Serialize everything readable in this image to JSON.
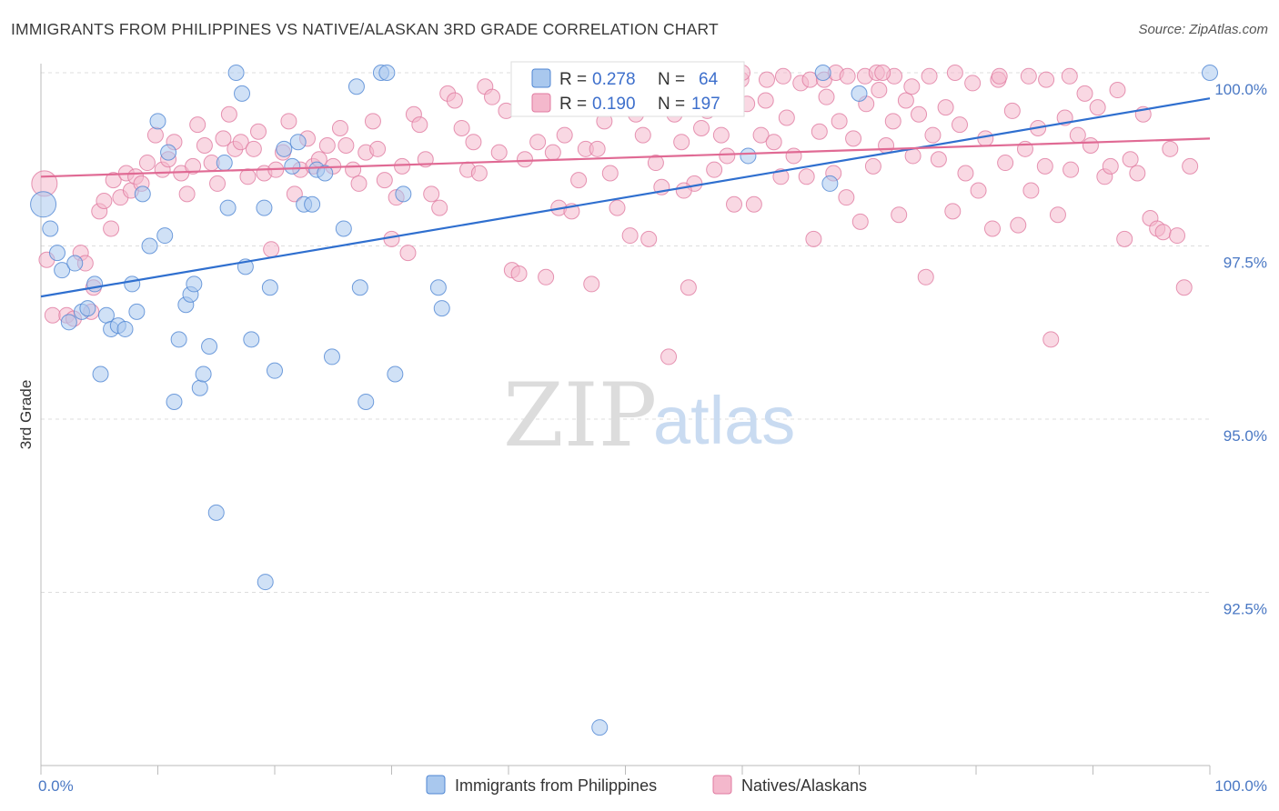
{
  "title": "IMMIGRANTS FROM PHILIPPINES VS NATIVE/ALASKAN 3RD GRADE CORRELATION CHART",
  "source": "Source: ZipAtlas.com",
  "watermark": {
    "zip": "ZIP",
    "atlas": "atlas"
  },
  "colors": {
    "blue_fill": "#a9c8ee",
    "blue_stroke": "#4f86d3",
    "blue_line": "#2f6fcf",
    "pink_fill": "#f4b8cc",
    "pink_stroke": "#e07aa0",
    "pink_line": "#e06a94",
    "grid": "#dddddd",
    "tick_text": "#4a78c4"
  },
  "legend": {
    "rows": [
      {
        "r_label": "R = ",
        "r_value": "0.278",
        "n_label": "N = ",
        "n_value": "64"
      },
      {
        "r_label": "R = ",
        "r_value": "0.190",
        "n_label": "N = ",
        "n_value": "197"
      }
    ]
  },
  "chart_data": {
    "type": "scatter",
    "title": "IMMIGRANTS FROM PHILIPPINES VS NATIVE/ALASKAN 3RD GRADE CORRELATION CHART",
    "xlabel": "",
    "ylabel": "3rd Grade",
    "xlim": [
      0,
      100
    ],
    "ylim": [
      90.2,
      100.4
    ],
    "x_tick_labels": [
      "0.0%",
      "100.0%"
    ],
    "y_ticks": [
      {
        "value": 100.0,
        "label": "100.0%"
      },
      {
        "value": 97.5,
        "label": "97.5%"
      },
      {
        "value": 95.0,
        "label": "95.0%"
      },
      {
        "value": 92.5,
        "label": "92.5%"
      }
    ],
    "grid": true,
    "legend_placement": "top-center",
    "series": [
      {
        "name": "Immigrants from Philippines",
        "color": "blue",
        "R": 0.278,
        "N": 64,
        "trend": {
          "x": [
            0,
            100
          ],
          "y": [
            96.77,
            99.63
          ]
        },
        "points": [
          [
            0.2,
            98.1
          ],
          [
            0.8,
            97.75
          ],
          [
            1.4,
            97.4
          ],
          [
            1.8,
            97.15
          ],
          [
            2.4,
            96.4
          ],
          [
            2.9,
            97.25
          ],
          [
            3.5,
            96.55
          ],
          [
            4.0,
            96.6
          ],
          [
            4.6,
            96.95
          ],
          [
            5.1,
            95.65
          ],
          [
            5.6,
            96.5
          ],
          [
            6.0,
            96.3
          ],
          [
            6.6,
            96.35
          ],
          [
            7.2,
            96.3
          ],
          [
            7.8,
            96.95
          ],
          [
            8.2,
            96.55
          ],
          [
            8.7,
            98.25
          ],
          [
            9.3,
            97.5
          ],
          [
            10.0,
            99.3
          ],
          [
            10.6,
            97.65
          ],
          [
            10.9,
            98.85
          ],
          [
            11.4,
            95.25
          ],
          [
            11.8,
            96.15
          ],
          [
            12.4,
            96.65
          ],
          [
            12.8,
            96.8
          ],
          [
            13.1,
            96.95
          ],
          [
            13.6,
            95.45
          ],
          [
            13.9,
            95.65
          ],
          [
            14.4,
            96.05
          ],
          [
            15.0,
            93.65
          ],
          [
            15.7,
            98.7
          ],
          [
            16.0,
            98.05
          ],
          [
            16.7,
            100.0
          ],
          [
            17.2,
            99.7
          ],
          [
            17.5,
            97.2
          ],
          [
            18.0,
            96.15
          ],
          [
            19.1,
            98.05
          ],
          [
            19.2,
            92.65
          ],
          [
            19.6,
            96.9
          ],
          [
            20.0,
            95.7
          ],
          [
            20.8,
            98.9
          ],
          [
            21.5,
            98.65
          ],
          [
            22.0,
            99.0
          ],
          [
            22.5,
            98.1
          ],
          [
            23.2,
            98.1
          ],
          [
            23.6,
            98.6
          ],
          [
            24.3,
            98.55
          ],
          [
            24.9,
            95.9
          ],
          [
            25.9,
            97.75
          ],
          [
            27.0,
            99.8
          ],
          [
            27.3,
            96.9
          ],
          [
            27.8,
            95.25
          ],
          [
            29.1,
            100.0
          ],
          [
            29.6,
            100.0
          ],
          [
            30.3,
            95.65
          ],
          [
            31.0,
            98.25
          ],
          [
            34.0,
            96.9
          ],
          [
            34.3,
            96.6
          ],
          [
            47.8,
            90.55
          ],
          [
            60.5,
            98.8
          ],
          [
            66.9,
            100.0
          ],
          [
            67.5,
            98.4
          ],
          [
            70.0,
            99.7
          ],
          [
            100.0,
            100.0
          ]
        ]
      },
      {
        "name": "Natives/Alaskans",
        "color": "pink",
        "R": 0.19,
        "N": 197,
        "trend": {
          "x": [
            0,
            100
          ],
          "y": [
            98.5,
            99.05
          ]
        },
        "points": [
          [
            0.3,
            98.4
          ],
          [
            0.5,
            97.3
          ],
          [
            1.0,
            96.5
          ],
          [
            2.2,
            96.5
          ],
          [
            2.8,
            96.45
          ],
          [
            3.4,
            97.4
          ],
          [
            3.8,
            97.25
          ],
          [
            4.3,
            96.55
          ],
          [
            4.5,
            96.9
          ],
          [
            5.0,
            98.0
          ],
          [
            5.4,
            98.15
          ],
          [
            6.0,
            97.75
          ],
          [
            6.2,
            98.45
          ],
          [
            6.8,
            98.2
          ],
          [
            7.3,
            98.55
          ],
          [
            7.7,
            98.3
          ],
          [
            8.1,
            98.5
          ],
          [
            8.6,
            98.4
          ],
          [
            9.1,
            98.7
          ],
          [
            9.8,
            99.1
          ],
          [
            10.4,
            98.6
          ],
          [
            10.9,
            98.75
          ],
          [
            11.4,
            99.0
          ],
          [
            12.0,
            98.55
          ],
          [
            12.5,
            98.25
          ],
          [
            13.0,
            98.65
          ],
          [
            13.4,
            99.25
          ],
          [
            14.0,
            98.95
          ],
          [
            14.6,
            98.7
          ],
          [
            15.1,
            98.4
          ],
          [
            15.6,
            99.05
          ],
          [
            16.1,
            99.4
          ],
          [
            16.6,
            98.9
          ],
          [
            17.1,
            99.0
          ],
          [
            17.7,
            98.5
          ],
          [
            18.2,
            98.9
          ],
          [
            18.6,
            99.15
          ],
          [
            19.1,
            98.55
          ],
          [
            19.7,
            97.45
          ],
          [
            20.1,
            98.6
          ],
          [
            20.7,
            98.85
          ],
          [
            21.2,
            99.3
          ],
          [
            21.7,
            98.25
          ],
          [
            22.2,
            98.6
          ],
          [
            22.8,
            99.05
          ],
          [
            23.3,
            98.65
          ],
          [
            23.8,
            98.75
          ],
          [
            24.5,
            98.95
          ],
          [
            25.0,
            98.65
          ],
          [
            25.6,
            99.2
          ],
          [
            26.1,
            98.95
          ],
          [
            26.7,
            98.6
          ],
          [
            27.2,
            98.4
          ],
          [
            27.8,
            98.85
          ],
          [
            28.4,
            99.3
          ],
          [
            28.8,
            98.9
          ],
          [
            29.4,
            98.45
          ],
          [
            30.0,
            97.6
          ],
          [
            30.4,
            98.2
          ],
          [
            30.9,
            98.65
          ],
          [
            31.4,
            97.4
          ],
          [
            31.9,
            99.4
          ],
          [
            32.4,
            99.25
          ],
          [
            32.9,
            98.75
          ],
          [
            33.4,
            98.25
          ],
          [
            34.1,
            98.05
          ],
          [
            34.8,
            99.7
          ],
          [
            35.4,
            99.6
          ],
          [
            36.0,
            99.2
          ],
          [
            36.5,
            98.6
          ],
          [
            37.0,
            99.0
          ],
          [
            37.5,
            98.55
          ],
          [
            38.0,
            99.8
          ],
          [
            38.6,
            99.65
          ],
          [
            39.2,
            98.85
          ],
          [
            39.8,
            99.45
          ],
          [
            40.3,
            97.15
          ],
          [
            40.9,
            97.1
          ],
          [
            41.4,
            98.75
          ],
          [
            42.0,
            99.5
          ],
          [
            42.5,
            99.0
          ],
          [
            43.2,
            97.05
          ],
          [
            43.8,
            98.85
          ],
          [
            44.3,
            98.05
          ],
          [
            44.8,
            99.1
          ],
          [
            45.4,
            98.0
          ],
          [
            46.0,
            98.45
          ],
          [
            46.6,
            98.9
          ],
          [
            47.1,
            96.95
          ],
          [
            47.6,
            98.9
          ],
          [
            48.2,
            99.3
          ],
          [
            48.7,
            98.55
          ],
          [
            49.3,
            98.05
          ],
          [
            49.8,
            99.65
          ],
          [
            50.4,
            97.65
          ],
          [
            50.9,
            99.4
          ],
          [
            51.5,
            99.1
          ],
          [
            52.0,
            97.6
          ],
          [
            52.6,
            98.7
          ],
          [
            53.1,
            98.35
          ],
          [
            53.7,
            95.9
          ],
          [
            54.2,
            99.4
          ],
          [
            54.8,
            99.0
          ],
          [
            55.4,
            96.9
          ],
          [
            55.9,
            98.4
          ],
          [
            56.5,
            99.2
          ],
          [
            57.0,
            99.45
          ],
          [
            57.6,
            98.6
          ],
          [
            58.2,
            99.1
          ],
          [
            58.7,
            98.8
          ],
          [
            59.3,
            98.1
          ],
          [
            59.9,
            99.9
          ],
          [
            60.4,
            99.55
          ],
          [
            61.0,
            98.1
          ],
          [
            61.6,
            99.1
          ],
          [
            62.1,
            99.9
          ],
          [
            62.7,
            99.0
          ],
          [
            63.3,
            98.5
          ],
          [
            63.8,
            99.35
          ],
          [
            64.4,
            98.8
          ],
          [
            65.0,
            99.85
          ],
          [
            65.5,
            98.5
          ],
          [
            66.1,
            97.6
          ],
          [
            66.6,
            99.15
          ],
          [
            67.2,
            99.65
          ],
          [
            67.8,
            98.55
          ],
          [
            68.3,
            99.3
          ],
          [
            68.9,
            98.2
          ],
          [
            69.5,
            99.05
          ],
          [
            70.1,
            97.85
          ],
          [
            70.6,
            99.55
          ],
          [
            71.2,
            98.65
          ],
          [
            71.7,
            99.75
          ],
          [
            72.3,
            98.95
          ],
          [
            72.9,
            99.3
          ],
          [
            73.4,
            97.95
          ],
          [
            74.0,
            99.6
          ],
          [
            74.6,
            98.8
          ],
          [
            75.1,
            99.4
          ],
          [
            75.7,
            97.05
          ],
          [
            76.3,
            99.1
          ],
          [
            76.8,
            98.75
          ],
          [
            77.4,
            99.5
          ],
          [
            78.0,
            98.0
          ],
          [
            78.6,
            99.25
          ],
          [
            79.1,
            98.55
          ],
          [
            79.7,
            99.85
          ],
          [
            80.2,
            98.3
          ],
          [
            80.8,
            99.05
          ],
          [
            81.4,
            97.75
          ],
          [
            81.9,
            99.9
          ],
          [
            82.5,
            98.7
          ],
          [
            83.1,
            99.45
          ],
          [
            83.6,
            97.8
          ],
          [
            84.2,
            98.9
          ],
          [
            84.7,
            98.3
          ],
          [
            85.3,
            99.2
          ],
          [
            85.9,
            98.65
          ],
          [
            86.4,
            96.15
          ],
          [
            87.0,
            97.95
          ],
          [
            87.6,
            99.35
          ],
          [
            88.1,
            98.6
          ],
          [
            88.7,
            99.1
          ],
          [
            89.3,
            99.7
          ],
          [
            89.8,
            98.95
          ],
          [
            90.4,
            99.5
          ],
          [
            91.0,
            98.5
          ],
          [
            91.5,
            98.65
          ],
          [
            92.1,
            99.75
          ],
          [
            92.7,
            97.6
          ],
          [
            93.2,
            98.75
          ],
          [
            93.8,
            98.55
          ],
          [
            94.3,
            99.4
          ],
          [
            94.9,
            97.9
          ],
          [
            95.5,
            97.75
          ],
          [
            96.0,
            97.7
          ],
          [
            96.6,
            98.9
          ],
          [
            97.2,
            97.65
          ],
          [
            97.8,
            96.9
          ],
          [
            98.3,
            98.65
          ],
          [
            55.0,
            98.3
          ],
          [
            62.0,
            99.6
          ],
          [
            73.0,
            99.95
          ],
          [
            76.0,
            99.95
          ],
          [
            78.2,
            100.0
          ],
          [
            82.0,
            99.95
          ],
          [
            84.5,
            99.95
          ],
          [
            86.0,
            99.9
          ],
          [
            88.0,
            99.95
          ],
          [
            57.5,
            99.95
          ],
          [
            59.0,
            99.9
          ],
          [
            60.0,
            100.0
          ],
          [
            63.5,
            99.95
          ],
          [
            65.8,
            99.9
          ],
          [
            67.0,
            99.9
          ],
          [
            68.0,
            100.0
          ],
          [
            69.0,
            99.95
          ],
          [
            70.5,
            99.95
          ],
          [
            71.5,
            100.0
          ],
          [
            72.0,
            100.0
          ],
          [
            74.5,
            99.8
          ]
        ]
      }
    ]
  },
  "bottom_legend": [
    {
      "label": "Immigrants from Philippines"
    },
    {
      "label": "Natives/Alaskans"
    }
  ]
}
